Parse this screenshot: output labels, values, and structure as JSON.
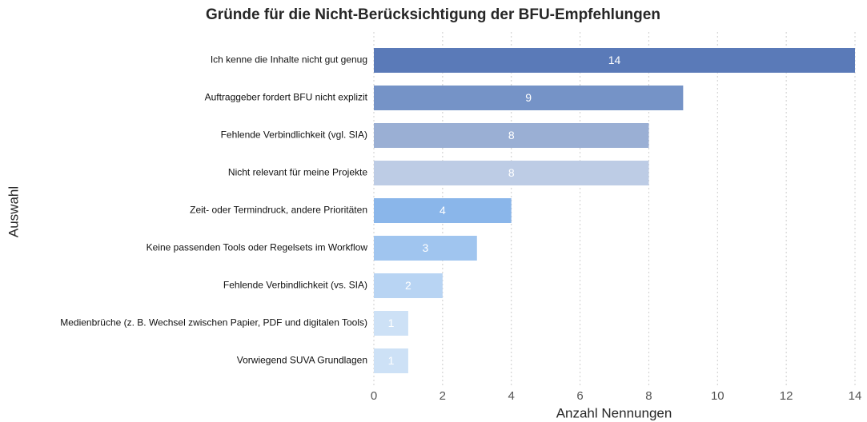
{
  "chart_data": {
    "type": "barh",
    "title": "Gründe für die Nicht-Berücksichtigung der BFU-Empfehlungen",
    "x_label": "Anzahl Nennungen",
    "y_label": "Auswahl",
    "categories": [
      "Ich kenne die Inhalte nicht gut genug",
      "Auftraggeber fordert BFU nicht explizit",
      "Fehlende Verbindlichkeit (vgl. SIA)",
      "Nicht relevant für meine Projekte",
      "Zeit- oder Termindruck, andere Prioritäten",
      "Keine passenden Tools oder Regelsets im Workflow",
      "Fehlende Verbindlichkeit (vs. SIA)",
      "Medienbrüche (z. B. Wechsel zwischen Papier, PDF und digitalen Tools)",
      "Vorwiegend SUVA Grundlagen"
    ],
    "values": [
      14,
      9,
      8,
      8,
      4,
      3,
      2,
      1,
      1
    ],
    "colors": [
      "#5a7ab8",
      "#7593c7",
      "#9aafd4",
      "#bdcce5",
      "#8ab6ea",
      "#a0c5ef",
      "#b8d4f3",
      "#cde1f6",
      "#cde1f6"
    ],
    "xlim": [
      0,
      14
    ],
    "xticks": [
      0,
      2,
      4,
      6,
      8,
      10,
      12,
      14
    ],
    "grid": true
  }
}
